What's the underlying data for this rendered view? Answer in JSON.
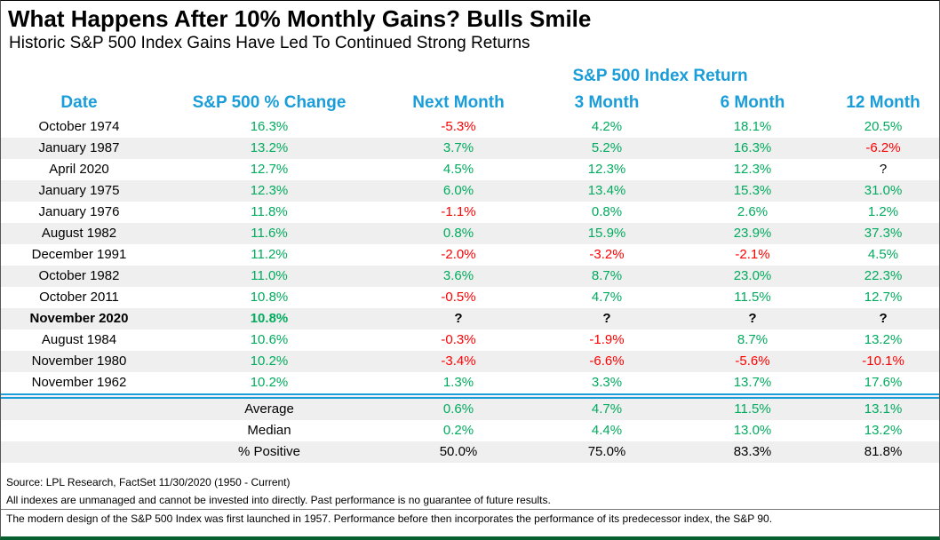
{
  "chart_data": {
    "type": "table",
    "title": "What Happens After 10% Monthly Gains? Bulls Smile",
    "subtitle": "Historic S&P 500 Index Gains Have Led To Continued Strong Returns",
    "group_header": "S&P 500 Index Return",
    "columns": [
      "Date",
      "S&P 500 % Change",
      "Next Month",
      "3 Month",
      "6 Month",
      "12 Month"
    ],
    "rows": [
      {
        "cells": [
          "October 1974",
          "16.3%",
          "-5.3%",
          "4.2%",
          "18.1%",
          "20.5%"
        ],
        "bold": false
      },
      {
        "cells": [
          "January 1987",
          "13.2%",
          "3.7%",
          "5.2%",
          "16.3%",
          "-6.2%"
        ],
        "bold": false
      },
      {
        "cells": [
          "April 2020",
          "12.7%",
          "4.5%",
          "12.3%",
          "12.3%",
          "?"
        ],
        "bold": false
      },
      {
        "cells": [
          "January 1975",
          "12.3%",
          "6.0%",
          "13.4%",
          "15.3%",
          "31.0%"
        ],
        "bold": false
      },
      {
        "cells": [
          "January 1976",
          "11.8%",
          "-1.1%",
          "0.8%",
          "2.6%",
          "1.2%"
        ],
        "bold": false
      },
      {
        "cells": [
          "August 1982",
          "11.6%",
          "0.8%",
          "15.9%",
          "23.9%",
          "37.3%"
        ],
        "bold": false
      },
      {
        "cells": [
          "December 1991",
          "11.2%",
          "-2.0%",
          "-3.2%",
          "-2.1%",
          "4.5%"
        ],
        "bold": false
      },
      {
        "cells": [
          "October 1982",
          "11.0%",
          "3.6%",
          "8.7%",
          "23.0%",
          "22.3%"
        ],
        "bold": false
      },
      {
        "cells": [
          "October 2011",
          "10.8%",
          "-0.5%",
          "4.7%",
          "11.5%",
          "12.7%"
        ],
        "bold": false
      },
      {
        "cells": [
          "November 2020",
          "10.8%",
          "?",
          "?",
          "?",
          "?"
        ],
        "bold": true
      },
      {
        "cells": [
          "August 1984",
          "10.6%",
          "-0.3%",
          "-1.9%",
          "8.7%",
          "13.2%"
        ],
        "bold": false
      },
      {
        "cells": [
          "November 1980",
          "10.2%",
          "-3.4%",
          "-6.6%",
          "-5.6%",
          "-10.1%"
        ],
        "bold": false
      },
      {
        "cells": [
          "November 1962",
          "10.2%",
          "1.3%",
          "3.3%",
          "13.7%",
          "17.6%"
        ],
        "bold": false
      }
    ],
    "summary_rows": [
      {
        "label": "Average",
        "values": [
          "0.6%",
          "4.7%",
          "11.5%",
          "13.1%"
        ],
        "value_color": "green"
      },
      {
        "label": "Median",
        "values": [
          "0.2%",
          "4.4%",
          "13.0%",
          "13.2%"
        ],
        "value_color": "green"
      },
      {
        "label": "% Positive",
        "values": [
          "50.0%",
          "75.0%",
          "83.3%",
          "81.8%"
        ],
        "value_color": "black"
      }
    ],
    "footnotes": [
      "Source: LPL Research, FactSet 11/30/2020 (1950 - Current)",
      "All indexes are unmanaged and cannot be invested into directly. Past performance is no guarantee of future results.",
      "The modern design of the S&P 500 Index was first launched in 1957. Performance before then incorporates the performance of its predecessor index, the S&P 90."
    ]
  },
  "colors": {
    "header_blue": "#1a9dd9",
    "positive_green": "#00ab5e",
    "negative_red": "#ff0000",
    "neutral_black": "#000000",
    "row_stripe": "#efefef",
    "separator_blue": "#1a9dd9",
    "bottom_border_green": "#075e2f"
  }
}
